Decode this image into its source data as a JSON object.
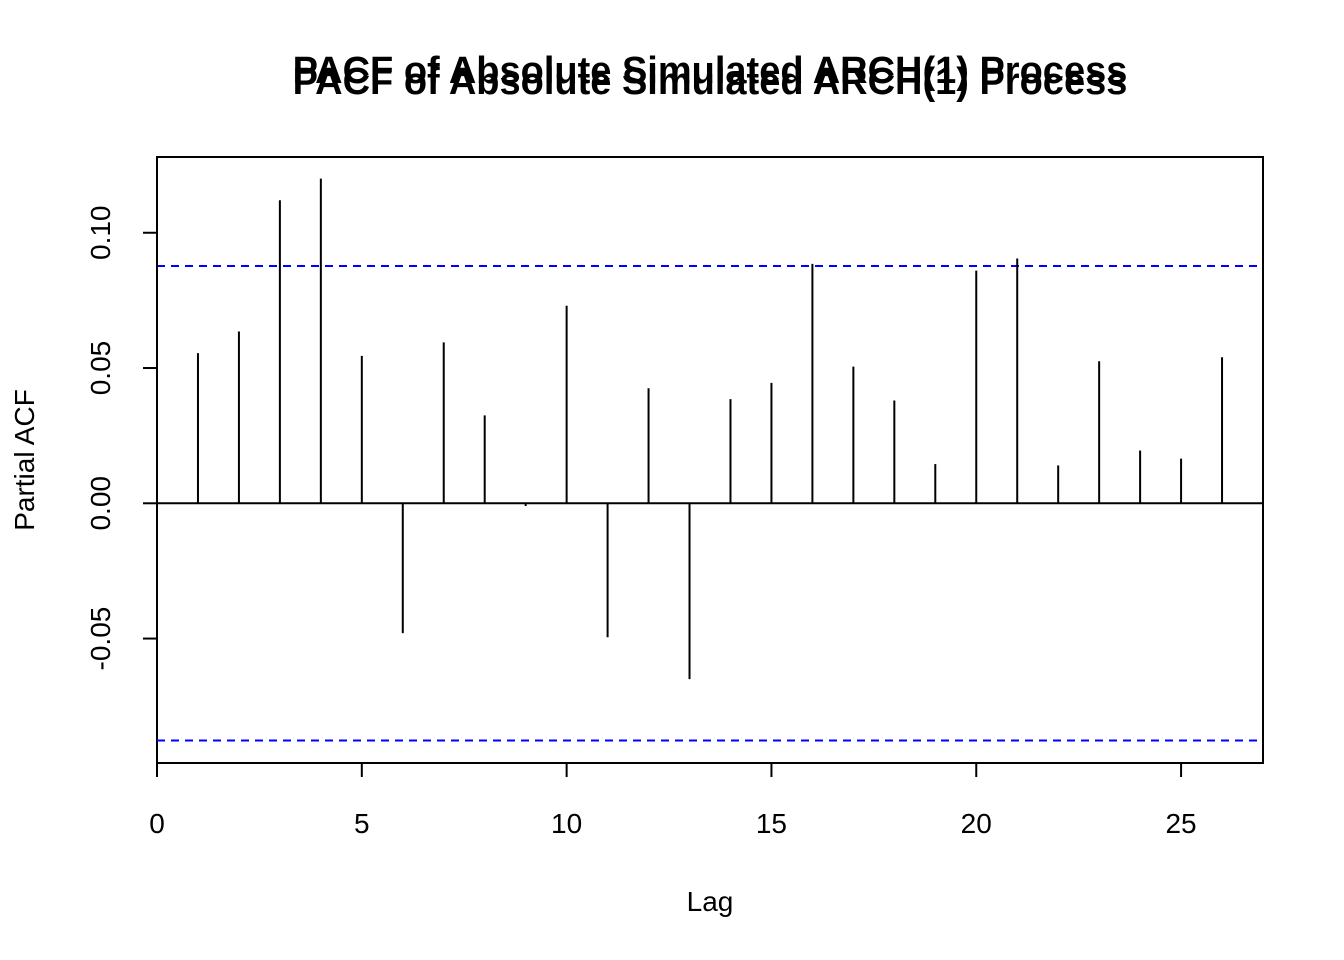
{
  "chart_data": {
    "type": "bar",
    "title": "PACF of Absolute Simulated ARCH(1) Process",
    "xlabel": "Lag",
    "ylabel": "Partial ACF",
    "xlim": [
      0,
      27
    ],
    "ylim": [
      -0.096,
      0.128
    ],
    "x_ticks": [
      0,
      5,
      10,
      15,
      20,
      25
    ],
    "x_tick_labels": [
      "0",
      "5",
      "10",
      "15",
      "20",
      "25"
    ],
    "y_ticks": [
      -0.05,
      0.0,
      0.05,
      0.1
    ],
    "y_tick_labels": [
      "-0.05",
      "0.00",
      "0.05",
      "0.10"
    ],
    "lags": [
      1,
      2,
      3,
      4,
      5,
      6,
      7,
      8,
      9,
      10,
      11,
      12,
      13,
      14,
      15,
      16,
      17,
      18,
      19,
      20,
      21,
      22,
      23,
      24,
      25,
      26
    ],
    "values": [
      0.0555,
      0.0635,
      0.112,
      0.12,
      0.0545,
      -0.048,
      0.0595,
      0.0325,
      -0.001,
      0.073,
      -0.0495,
      0.0425,
      -0.065,
      0.0385,
      0.0445,
      0.0885,
      0.0505,
      0.038,
      0.0145,
      0.086,
      0.0905,
      0.014,
      0.0525,
      0.0195,
      0.0165,
      0.054
    ],
    "confidence_bound": 0.0877,
    "colors": {
      "bars": "#000000",
      "ci_line": "#0000ff",
      "axes": "#000000"
    }
  }
}
